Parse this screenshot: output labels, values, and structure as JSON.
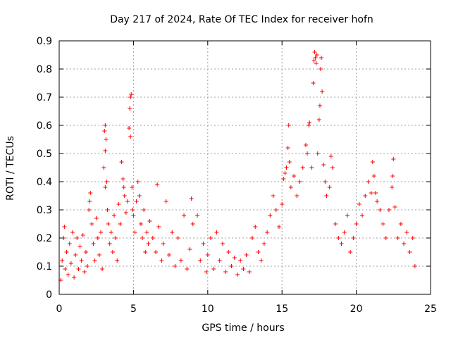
{
  "chart_data": {
    "type": "scatter",
    "title": "Day 217 of 2024, Rate Of TEC Index for receiver hofn",
    "xlabel": "GPS time / hours",
    "ylabel": "ROTI / TECUs",
    "xlim": [
      0,
      25
    ],
    "ylim": [
      0,
      0.9
    ],
    "xticks": [
      0,
      5,
      10,
      15,
      20,
      25
    ],
    "xtick_labels": [
      "0",
      "5",
      "10",
      "15",
      "20",
      "25"
    ],
    "yticks": [
      0,
      0.1,
      0.2,
      0.3,
      0.4,
      0.5,
      0.6,
      0.7,
      0.8,
      0.9
    ],
    "ytick_labels": [
      "0",
      "0.1",
      "0.2",
      "0.3",
      "0.4",
      "0.5",
      "0.6",
      "0.7",
      "0.8",
      "0.9"
    ],
    "grid": true,
    "marker": "+",
    "color": "#ff0000",
    "series": [
      {
        "name": "ROTI",
        "points": [
          [
            0.1,
            0.05
          ],
          [
            0.2,
            0.12
          ],
          [
            0.3,
            0.2
          ],
          [
            0.35,
            0.24
          ],
          [
            0.4,
            0.09
          ],
          [
            0.5,
            0.15
          ],
          [
            0.6,
            0.07
          ],
          [
            0.7,
            0.18
          ],
          [
            0.8,
            0.11
          ],
          [
            0.9,
            0.22
          ],
          [
            1.0,
            0.06
          ],
          [
            1.1,
            0.14
          ],
          [
            1.2,
            0.2
          ],
          [
            1.3,
            0.09
          ],
          [
            1.4,
            0.17
          ],
          [
            1.5,
            0.12
          ],
          [
            1.6,
            0.21
          ],
          [
            1.7,
            0.08
          ],
          [
            1.8,
            0.15
          ],
          [
            1.9,
            0.1
          ],
          [
            2.0,
            0.3
          ],
          [
            2.05,
            0.33
          ],
          [
            2.1,
            0.36
          ],
          [
            2.2,
            0.25
          ],
          [
            2.3,
            0.18
          ],
          [
            2.4,
            0.12
          ],
          [
            2.5,
            0.27
          ],
          [
            2.6,
            0.2
          ],
          [
            2.7,
            0.14
          ],
          [
            2.8,
            0.22
          ],
          [
            2.9,
            0.09
          ],
          [
            3.0,
            0.45
          ],
          [
            3.05,
            0.58
          ],
          [
            3.1,
            0.6
          ],
          [
            3.15,
            0.55
          ],
          [
            3.1,
            0.51
          ],
          [
            3.2,
            0.4
          ],
          [
            3.1,
            0.38
          ],
          [
            3.25,
            0.3
          ],
          [
            3.3,
            0.25
          ],
          [
            3.4,
            0.18
          ],
          [
            3.5,
            0.22
          ],
          [
            3.6,
            0.15
          ],
          [
            3.7,
            0.28
          ],
          [
            3.8,
            0.2
          ],
          [
            3.9,
            0.12
          ],
          [
            4.0,
            0.32
          ],
          [
            4.1,
            0.25
          ],
          [
            4.2,
            0.47
          ],
          [
            4.3,
            0.41
          ],
          [
            4.35,
            0.38
          ],
          [
            4.4,
            0.35
          ],
          [
            4.5,
            0.29
          ],
          [
            4.6,
            0.33
          ],
          [
            4.7,
            0.59
          ],
          [
            4.75,
            0.66
          ],
          [
            4.8,
            0.7
          ],
          [
            4.85,
            0.71
          ],
          [
            4.8,
            0.56
          ],
          [
            4.9,
            0.38
          ],
          [
            4.95,
            0.3
          ],
          [
            5.0,
            0.28
          ],
          [
            5.1,
            0.22
          ],
          [
            5.2,
            0.33
          ],
          [
            5.3,
            0.4
          ],
          [
            5.4,
            0.35
          ],
          [
            5.5,
            0.25
          ],
          [
            5.6,
            0.2
          ],
          [
            5.7,
            0.3
          ],
          [
            5.8,
            0.15
          ],
          [
            5.9,
            0.22
          ],
          [
            6.0,
            0.18
          ],
          [
            6.1,
            0.26
          ],
          [
            6.3,
            0.2
          ],
          [
            6.5,
            0.15
          ],
          [
            6.6,
            0.39
          ],
          [
            6.7,
            0.24
          ],
          [
            6.9,
            0.12
          ],
          [
            7.0,
            0.18
          ],
          [
            7.2,
            0.33
          ],
          [
            7.4,
            0.14
          ],
          [
            7.6,
            0.22
          ],
          [
            7.8,
            0.1
          ],
          [
            8.0,
            0.2
          ],
          [
            8.2,
            0.12
          ],
          [
            8.4,
            0.28
          ],
          [
            8.6,
            0.09
          ],
          [
            8.8,
            0.16
          ],
          [
            8.9,
            0.34
          ],
          [
            9.0,
            0.25
          ],
          [
            9.3,
            0.28
          ],
          [
            9.5,
            0.12
          ],
          [
            9.7,
            0.18
          ],
          [
            9.9,
            0.08
          ],
          [
            10.0,
            0.14
          ],
          [
            10.2,
            0.2
          ],
          [
            10.4,
            0.09
          ],
          [
            10.6,
            0.22
          ],
          [
            10.8,
            0.12
          ],
          [
            11.0,
            0.18
          ],
          [
            11.2,
            0.08
          ],
          [
            11.4,
            0.15
          ],
          [
            11.6,
            0.1
          ],
          [
            11.8,
            0.13
          ],
          [
            12.0,
            0.07
          ],
          [
            12.2,
            0.12
          ],
          [
            12.4,
            0.09
          ],
          [
            12.6,
            0.14
          ],
          [
            12.8,
            0.08
          ],
          [
            13.0,
            0.2
          ],
          [
            13.2,
            0.24
          ],
          [
            13.4,
            0.15
          ],
          [
            13.6,
            0.12
          ],
          [
            13.8,
            0.18
          ],
          [
            14.0,
            0.22
          ],
          [
            14.2,
            0.28
          ],
          [
            14.4,
            0.35
          ],
          [
            14.6,
            0.3
          ],
          [
            14.8,
            0.24
          ],
          [
            15.0,
            0.32
          ],
          [
            15.1,
            0.41
          ],
          [
            15.2,
            0.43
          ],
          [
            15.3,
            0.45
          ],
          [
            15.4,
            0.52
          ],
          [
            15.45,
            0.6
          ],
          [
            15.5,
            0.47
          ],
          [
            15.6,
            0.38
          ],
          [
            15.8,
            0.42
          ],
          [
            16.0,
            0.35
          ],
          [
            16.2,
            0.4
          ],
          [
            16.4,
            0.45
          ],
          [
            16.6,
            0.53
          ],
          [
            16.7,
            0.5
          ],
          [
            16.8,
            0.6
          ],
          [
            16.85,
            0.61
          ],
          [
            17.0,
            0.45
          ],
          [
            17.1,
            0.75
          ],
          [
            17.15,
            0.83
          ],
          [
            17.2,
            0.86
          ],
          [
            17.25,
            0.84
          ],
          [
            17.3,
            0.82
          ],
          [
            17.35,
            0.85
          ],
          [
            17.4,
            0.5
          ],
          [
            17.5,
            0.62
          ],
          [
            17.55,
            0.67
          ],
          [
            17.6,
            0.8
          ],
          [
            17.65,
            0.84
          ],
          [
            17.7,
            0.72
          ],
          [
            17.8,
            0.46
          ],
          [
            17.9,
            0.4
          ],
          [
            18.0,
            0.35
          ],
          [
            18.2,
            0.38
          ],
          [
            18.3,
            0.49
          ],
          [
            18.4,
            0.45
          ],
          [
            18.6,
            0.25
          ],
          [
            18.8,
            0.2
          ],
          [
            19.0,
            0.18
          ],
          [
            19.2,
            0.22
          ],
          [
            19.4,
            0.28
          ],
          [
            19.6,
            0.15
          ],
          [
            19.8,
            0.2
          ],
          [
            20.0,
            0.25
          ],
          [
            20.2,
            0.32
          ],
          [
            20.4,
            0.28
          ],
          [
            20.6,
            0.35
          ],
          [
            20.8,
            0.4
          ],
          [
            21.0,
            0.36
          ],
          [
            21.1,
            0.47
          ],
          [
            21.2,
            0.42
          ],
          [
            21.3,
            0.36
          ],
          [
            21.4,
            0.33
          ],
          [
            21.6,
            0.3
          ],
          [
            21.8,
            0.25
          ],
          [
            22.0,
            0.2
          ],
          [
            22.2,
            0.3
          ],
          [
            22.4,
            0.38
          ],
          [
            22.45,
            0.42
          ],
          [
            22.5,
            0.48
          ],
          [
            22.6,
            0.31
          ],
          [
            22.8,
            0.2
          ],
          [
            23.0,
            0.25
          ],
          [
            23.2,
            0.18
          ],
          [
            23.4,
            0.22
          ],
          [
            23.6,
            0.15
          ],
          [
            23.8,
            0.2
          ],
          [
            23.95,
            0.1
          ]
        ]
      }
    ]
  }
}
